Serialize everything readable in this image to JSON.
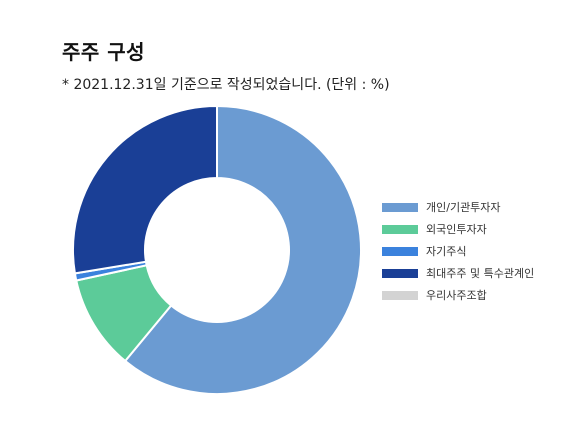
{
  "header": {
    "title": "주주 구성",
    "subtitle": "* 2021.12.31일 기준으로 작성되었습니다. (단위 : %)"
  },
  "chart_data": {
    "type": "donut",
    "title": "주주 구성",
    "subtitle": "* 2021.12.31일 기준으로 작성되었습니다. (단위 : %)",
    "categories": [
      "개인/기관투자자",
      "외국인투자자",
      "자기주식",
      "최대주주 및 특수관계인",
      "우리사주조합"
    ],
    "values": [
      61.0,
      10.6,
      0.8,
      27.6,
      0.0
    ],
    "colors": [
      "#6b9bd2",
      "#5ccb99",
      "#3b82dd",
      "#1a3f96",
      "#d3d3d3"
    ],
    "legend_position": "right"
  }
}
